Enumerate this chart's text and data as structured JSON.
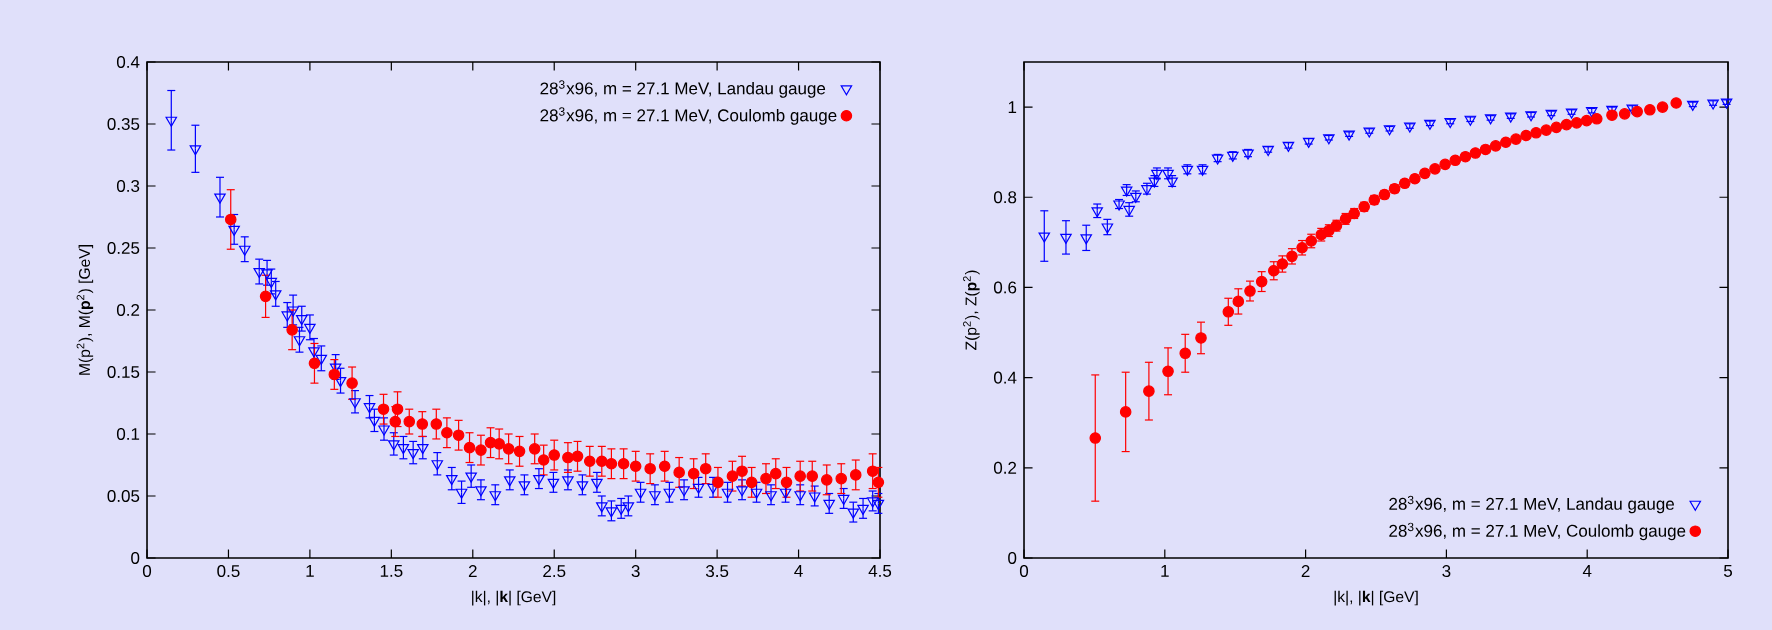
{
  "chart_data": [
    {
      "type": "scatter",
      "xlabel": "|k|, |**k**| [GeV]",
      "ylabel": "M(p$^{2}$), M(**p**$^{2}$) [GeV]",
      "xlim": [
        0,
        4.5
      ],
      "ylim": [
        0,
        0.4
      ],
      "xticks": [
        0,
        0.5,
        1,
        1.5,
        2,
        2.5,
        3,
        3.5,
        4,
        4.5
      ],
      "yticks": [
        0,
        0.05,
        0.1,
        0.15,
        0.2,
        0.25,
        0.3,
        0.35,
        0.4
      ],
      "legend": "top right",
      "grid": false,
      "series": [
        {
          "name": "28$^{3}$x96, m = 27.1 MeV, Landau gauge",
          "color": "#0000ff",
          "marker": "triangle",
          "x": [
            0.149,
            0.297,
            0.448,
            0.535,
            0.6,
            0.689,
            0.737,
            0.763,
            0.79,
            0.861,
            0.897,
            0.936,
            0.95,
            1.0,
            1.025,
            1.07,
            1.158,
            1.188,
            1.277,
            1.366,
            1.396,
            1.455,
            1.515,
            1.574,
            1.634,
            1.693,
            1.782,
            1.871,
            1.931,
            1.99,
            2.05,
            2.138,
            2.227,
            2.317,
            2.406,
            2.495,
            2.584,
            2.673,
            2.762,
            2.792,
            2.851,
            2.911,
            2.955,
            3.03,
            3.118,
            3.207,
            3.297,
            3.386,
            3.475,
            3.564,
            3.653,
            3.742,
            3.831,
            3.92,
            4.01,
            4.099,
            4.188,
            4.277,
            4.336,
            4.396,
            4.455,
            4.49
          ],
          "values": [
            0.353,
            0.33,
            0.291,
            0.265,
            0.249,
            0.231,
            0.23,
            0.223,
            0.213,
            0.196,
            0.2,
            0.176,
            0.193,
            0.186,
            0.167,
            0.161,
            0.154,
            0.143,
            0.126,
            0.122,
            0.111,
            0.104,
            0.092,
            0.089,
            0.085,
            0.089,
            0.076,
            0.064,
            0.053,
            0.066,
            0.055,
            0.051,
            0.063,
            0.059,
            0.064,
            0.061,
            0.063,
            0.059,
            0.061,
            0.042,
            0.038,
            0.04,
            0.042,
            0.053,
            0.051,
            0.053,
            0.055,
            0.057,
            0.057,
            0.053,
            0.055,
            0.053,
            0.051,
            0.053,
            0.051,
            0.05,
            0.044,
            0.048,
            0.037,
            0.04,
            0.046,
            0.044
          ],
          "errors": [
            0.024,
            0.019,
            0.016,
            0.012,
            0.01,
            0.01,
            0.01,
            0.01,
            0.01,
            0.01,
            0.012,
            0.01,
            0.01,
            0.01,
            0.01,
            0.01,
            0.01,
            0.01,
            0.009,
            0.009,
            0.009,
            0.009,
            0.009,
            0.009,
            0.009,
            0.009,
            0.009,
            0.009,
            0.009,
            0.009,
            0.008,
            0.008,
            0.008,
            0.008,
            0.008,
            0.008,
            0.008,
            0.008,
            0.008,
            0.008,
            0.008,
            0.008,
            0.008,
            0.008,
            0.008,
            0.008,
            0.008,
            0.008,
            0.008,
            0.008,
            0.008,
            0.008,
            0.008,
            0.008,
            0.008,
            0.008,
            0.008,
            0.008,
            0.008,
            0.008,
            0.008,
            0.008
          ]
        },
        {
          "name": "28$^{3}$x96, m = 27.1 MeV, Coulomb gauge",
          "color": "#ff0000",
          "marker": "circle",
          "x": [
            0.514,
            0.728,
            0.891,
            1.028,
            1.15,
            1.259,
            1.452,
            1.524,
            1.538,
            1.61,
            1.69,
            1.776,
            1.841,
            1.913,
            1.98,
            2.05,
            2.109,
            2.162,
            2.22,
            2.287,
            2.38,
            2.435,
            2.5,
            2.584,
            2.643,
            2.718,
            2.792,
            2.851,
            2.926,
            3.0,
            3.089,
            3.178,
            3.267,
            3.356,
            3.43,
            3.505,
            3.594,
            3.653,
            3.712,
            3.8,
            3.86,
            3.926,
            4.01,
            4.084,
            4.173,
            4.262,
            4.351,
            4.455,
            4.49
          ],
          "values": [
            0.273,
            0.211,
            0.184,
            0.157,
            0.148,
            0.141,
            0.12,
            0.11,
            0.12,
            0.11,
            0.108,
            0.108,
            0.101,
            0.099,
            0.089,
            0.087,
            0.093,
            0.092,
            0.088,
            0.086,
            0.088,
            0.079,
            0.083,
            0.081,
            0.082,
            0.078,
            0.078,
            0.076,
            0.076,
            0.074,
            0.072,
            0.074,
            0.069,
            0.068,
            0.072,
            0.061,
            0.066,
            0.07,
            0.061,
            0.064,
            0.068,
            0.061,
            0.066,
            0.066,
            0.063,
            0.064,
            0.067,
            0.07,
            0.061
          ],
          "errors": [
            0.024,
            0.017,
            0.016,
            0.016,
            0.012,
            0.013,
            0.012,
            0.012,
            0.014,
            0.01,
            0.01,
            0.012,
            0.012,
            0.012,
            0.012,
            0.012,
            0.012,
            0.012,
            0.012,
            0.012,
            0.012,
            0.012,
            0.012,
            0.012,
            0.012,
            0.012,
            0.012,
            0.012,
            0.012,
            0.012,
            0.012,
            0.012,
            0.012,
            0.012,
            0.012,
            0.012,
            0.012,
            0.012,
            0.012,
            0.012,
            0.012,
            0.012,
            0.012,
            0.012,
            0.012,
            0.012,
            0.012,
            0.014,
            0.012
          ]
        }
      ]
    },
    {
      "type": "scatter",
      "xlabel": "|k|, |**k**| [GeV]",
      "ylabel": "Z(p$^{2}$), Z(**p**$^{2}$)",
      "xlim": [
        0,
        5
      ],
      "ylim": [
        0,
        1.1
      ],
      "xticks": [
        0,
        1,
        2,
        3,
        4,
        5
      ],
      "yticks": [
        0,
        0.2,
        0.4,
        0.6,
        0.8,
        1
      ],
      "legend": "bottom right",
      "grid": false,
      "series": [
        {
          "name": "28$^{3}$x96, m = 27.1 MeV, Landau gauge",
          "color": "#0000ff",
          "marker": "triangle",
          "x": [
            0.144,
            0.298,
            0.442,
            0.52,
            0.592,
            0.675,
            0.729,
            0.747,
            0.794,
            0.873,
            0.926,
            0.944,
            1.023,
            1.052,
            1.16,
            1.268,
            1.375,
            1.483,
            1.591,
            1.734,
            1.878,
            2.022,
            2.165,
            2.309,
            2.452,
            2.596,
            2.74,
            2.883,
            3.027,
            3.17,
            3.314,
            3.457,
            3.601,
            3.745,
            3.889,
            4.032,
            4.176,
            4.32,
            4.463,
            4.75,
            4.894,
            4.99
          ],
          "values": [
            0.714,
            0.711,
            0.71,
            0.77,
            0.734,
            0.785,
            0.816,
            0.773,
            0.802,
            0.819,
            0.836,
            0.853,
            0.853,
            0.836,
            0.862,
            0.862,
            0.887,
            0.893,
            0.898,
            0.906,
            0.915,
            0.924,
            0.932,
            0.94,
            0.947,
            0.952,
            0.958,
            0.964,
            0.968,
            0.973,
            0.976,
            0.98,
            0.983,
            0.986,
            0.989,
            0.992,
            0.995,
            0.998,
            null,
            1.006,
            1.009,
            1.011
          ],
          "errors": [
            0.056,
            0.037,
            0.028,
            0.015,
            0.017,
            0.01,
            0.012,
            0.015,
            0.012,
            0.012,
            0.012,
            0.012,
            0.012,
            0.012,
            0.01,
            0.01,
            0.008,
            0.008,
            0.008,
            0.006,
            0.006,
            0.006,
            0.005,
            0.005,
            0.005,
            0.005,
            0.005,
            0.005,
            0.005,
            0.005,
            0.005,
            0.005,
            0.005,
            0.005,
            0.005,
            0.005,
            0.005,
            0.005,
            null,
            0.005,
            0.005,
            0.005
          ]
        },
        {
          "name": "28$^{3}$x96, m = 27.1 MeV, Coulomb gauge",
          "color": "#ff0000",
          "marker": "circle",
          "x": [
            0.506,
            0.722,
            0.887,
            1.023,
            1.145,
            1.257,
            1.451,
            1.522,
            1.605,
            1.688,
            1.774,
            1.835,
            1.903,
            1.975,
            2.04,
            2.111,
            2.165,
            2.219,
            2.284,
            2.345,
            2.416,
            2.488,
            2.56,
            2.632,
            2.704,
            2.776,
            2.847,
            2.919,
            2.991,
            3.063,
            3.135,
            3.206,
            3.278,
            3.35,
            3.422,
            3.494,
            3.566,
            3.637,
            3.709,
            3.781,
            3.853,
            3.925,
            3.996,
            4.068,
            4.176,
            4.266,
            4.355,
            4.445,
            4.535,
            4.632
          ],
          "values": [
            0.266,
            0.324,
            0.37,
            0.414,
            0.454,
            0.488,
            0.546,
            0.569,
            0.592,
            0.613,
            0.637,
            0.652,
            0.669,
            0.688,
            0.703,
            0.717,
            0.726,
            0.737,
            0.752,
            0.764,
            0.779,
            0.794,
            0.806,
            0.819,
            0.831,
            0.841,
            0.853,
            0.863,
            0.873,
            0.882,
            0.89,
            0.898,
            0.906,
            0.914,
            0.922,
            0.929,
            0.937,
            0.943,
            0.949,
            0.955,
            0.961,
            0.965,
            0.97,
            0.974,
            0.982,
            0.985,
            0.99,
            0.994,
            1.0,
            1.009
          ],
          "errors": [
            0.14,
            0.088,
            0.064,
            0.052,
            0.042,
            0.035,
            0.03,
            0.028,
            0.022,
            0.022,
            0.02,
            0.018,
            0.017,
            0.016,
            0.015,
            0.014,
            0.013,
            0.012,
            0.012,
            0.011,
            0.01,
            0.01,
            0.009,
            0.009,
            0.008,
            0.008,
            0.008,
            0.007,
            0.007,
            0.007,
            0.006,
            0.006,
            0.006,
            0.006,
            0.006,
            0.005,
            0.005,
            0.005,
            0.005,
            0.005,
            0.005,
            0.005,
            0.005,
            0.005,
            0.005,
            0.005,
            0.005,
            0.005,
            0.005,
            0.005
          ]
        }
      ]
    }
  ]
}
